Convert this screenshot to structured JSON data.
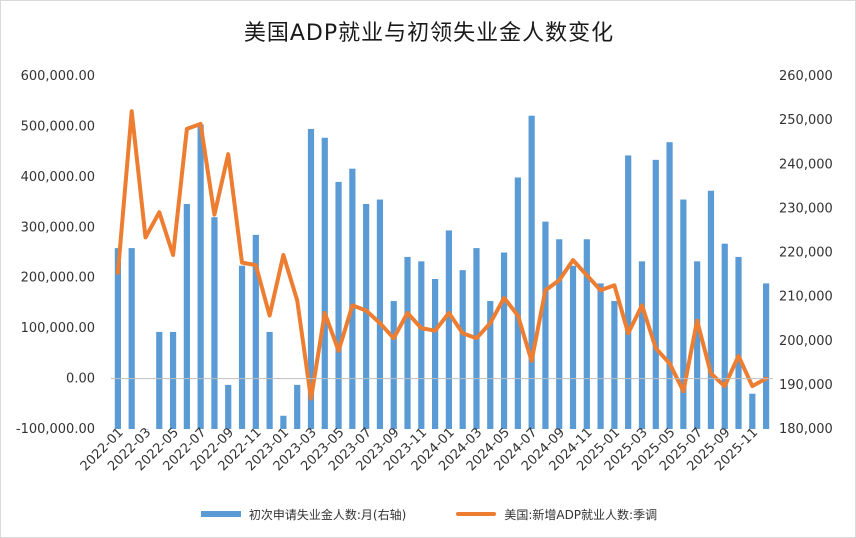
{
  "chart_data": {
    "type": "bar+line",
    "title": "美国ADP就业与初领失业金人数变化",
    "categories": [
      "2022-01",
      "2022-02",
      "2022-03",
      "2022-04",
      "2022-05",
      "2022-06",
      "2022-07",
      "2022-08",
      "2022-09",
      "2022-10",
      "2022-11",
      "2022-12",
      "2023-01",
      "2023-02",
      "2023-03",
      "2023-04",
      "2023-05",
      "2023-06",
      "2023-07",
      "2023-08",
      "2023-09",
      "2023-10",
      "2023-11",
      "2023-12",
      "2024-01",
      "2024-02",
      "2024-03",
      "2024-04",
      "2024-05",
      "2024-06",
      "2024-07",
      "2024-08",
      "2024-09",
      "2024-10",
      "2024-11",
      "2024-12",
      "2025-01",
      "2025-02",
      "2025-03",
      "2025-04",
      "2025-05",
      "2025-06",
      "2025-07",
      "2025-08",
      "2025-09",
      "2025-10",
      "2025-11",
      "2025-12"
    ],
    "x_tick_labels": [
      "2022-01",
      "2022-03",
      "2022-05",
      "2022-07",
      "2022-09",
      "2022-11",
      "2023-01",
      "2023-03",
      "2023-05",
      "2023-07",
      "2023-09",
      "2023-11",
      "2024-01",
      "2024-03",
      "2024-05",
      "2024-07",
      "2024-09",
      "2024-11",
      "2025-01",
      "2025-03",
      "2025-05",
      "2025-07",
      "2025-09",
      "2025-11"
    ],
    "series": [
      {
        "name": "初次申请失业金人数:月(右轴)",
        "type": "bar",
        "axis": "right",
        "color": "#5b9bd5",
        "values": [
          221000,
          221000,
          180000,
          202000,
          202000,
          231000,
          249000,
          228000,
          190000,
          217000,
          224000,
          202000,
          183000,
          190000,
          248000,
          246000,
          236000,
          239000,
          231000,
          232000,
          209000,
          219000,
          218000,
          214000,
          225000,
          216000,
          221000,
          209000,
          220000,
          237000,
          251000,
          227000,
          223000,
          217000,
          223000,
          213000,
          209000,
          242000,
          218000,
          241000,
          245000,
          232000,
          218000,
          234000,
          222000,
          219000,
          188000,
          213000
        ]
      },
      {
        "name": "美国:新增ADP就业人数:季调",
        "type": "line",
        "axis": "left",
        "color": "#ed7d31",
        "values": [
          210000,
          530000,
          280000,
          330000,
          245000,
          495000,
          505000,
          325000,
          445000,
          230000,
          225000,
          125000,
          245000,
          155000,
          -40000,
          130000,
          55000,
          145000,
          135000,
          110000,
          80000,
          130000,
          100000,
          95000,
          130000,
          90000,
          80000,
          110000,
          160000,
          125000,
          35000,
          175000,
          195000,
          235000,
          205000,
          175000,
          185000,
          90000,
          145000,
          60000,
          30000,
          -25000,
          115000,
          10000,
          -15000,
          45000,
          -15000,
          0
        ]
      }
    ],
    "y_left": {
      "min": -100000,
      "max": 600000,
      "step": 100000,
      "tick_labels": [
        "-100,000.00",
        "0.00",
        "100,000.00",
        "200,000.00",
        "300,000.00",
        "400,000.00",
        "500,000.00",
        "600,000.00"
      ]
    },
    "y_right": {
      "min": 180000,
      "max": 260000,
      "step": 10000,
      "tick_labels": [
        "180,000",
        "190,000",
        "200,000",
        "210,000",
        "220,000",
        "230,000",
        "240,000",
        "250,000",
        "260,000"
      ]
    },
    "legend_position": "bottom",
    "grid": false
  }
}
